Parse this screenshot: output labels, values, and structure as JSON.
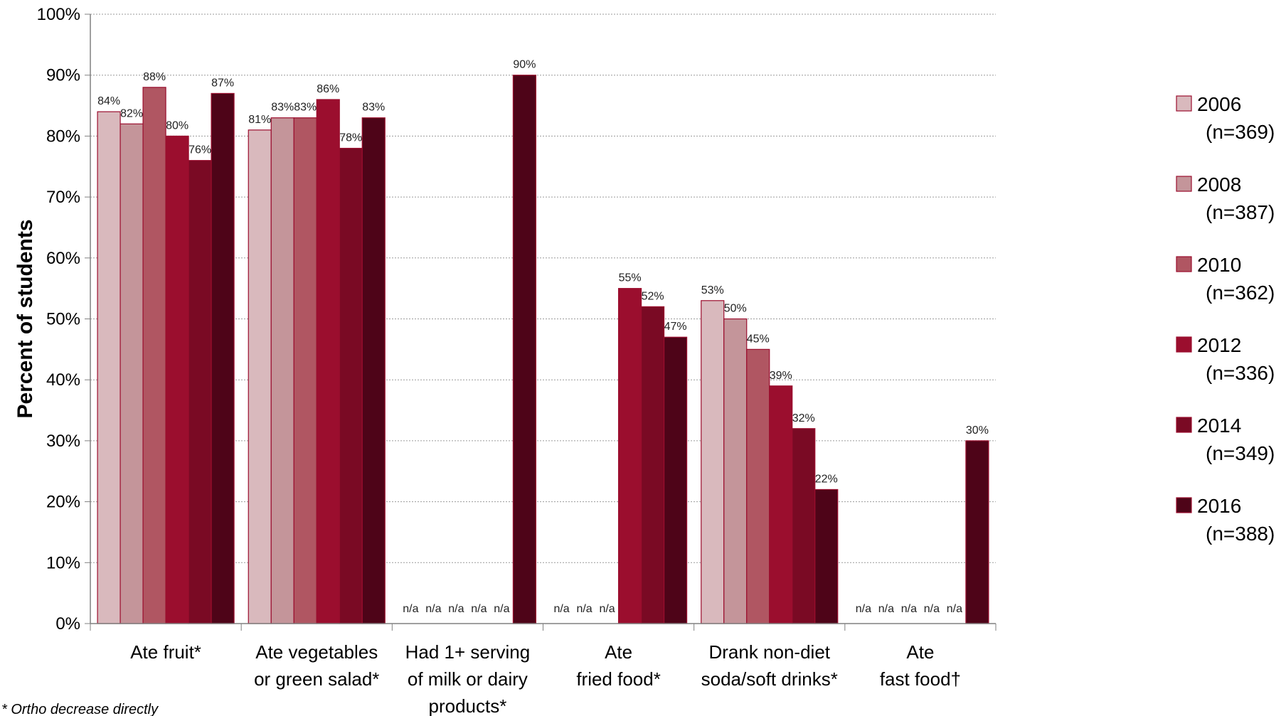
{
  "chart_data": {
    "type": "bar",
    "title": "",
    "xlabel": "",
    "ylabel": "Percent of students",
    "ylim": [
      0,
      100
    ],
    "yticks": [
      "0%",
      "10%",
      "20%",
      "30%",
      "40%",
      "50%",
      "60%",
      "70%",
      "80%",
      "90%",
      "100%"
    ],
    "grid": true,
    "legend": "right",
    "categories": [
      [
        "Ate fruit*"
      ],
      [
        "Ate vegetables",
        "or green salad*"
      ],
      [
        "Had 1+ serving",
        "of milk or dairy",
        "products*"
      ],
      [
        "Ate",
        "fried food*"
      ],
      [
        "Drank non-diet",
        "soda/soft drinks*"
      ],
      [
        "Ate",
        "fast food†"
      ]
    ],
    "series": [
      {
        "name": "2006",
        "n": "(n=369)",
        "color": "#d9b9bd",
        "values": [
          84,
          81,
          null,
          null,
          53,
          null
        ],
        "labels": [
          "84%",
          "81%",
          "n/a",
          "n/a",
          "53%",
          "n/a"
        ]
      },
      {
        "name": "2008",
        "n": "(n=387)",
        "color": "#c4959a",
        "values": [
          82,
          83,
          null,
          null,
          50,
          null
        ],
        "labels": [
          "82%",
          "83%",
          "n/a",
          "n/a",
          "50%",
          "n/a"
        ]
      },
      {
        "name": "2010",
        "n": "(n=362)",
        "color": "#b05662",
        "values": [
          88,
          83,
          null,
          null,
          45,
          null
        ],
        "labels": [
          "88%",
          "83%",
          "n/a",
          "n/a",
          "45%",
          "n/a"
        ]
      },
      {
        "name": "2012",
        "n": "(n=336)",
        "color": "#9b0e2e",
        "values": [
          80,
          86,
          null,
          55,
          39,
          null
        ],
        "labels": [
          "80%",
          "86%",
          "n/a",
          "55%",
          "39%",
          "n/a"
        ]
      },
      {
        "name": "2014",
        "n": "(n=349)",
        "color": "#7a0a24",
        "values": [
          76,
          78,
          null,
          52,
          32,
          null
        ],
        "labels": [
          "76%",
          "78%",
          "n/a",
          "52%",
          "32%",
          "n/a"
        ]
      },
      {
        "name": "2016",
        "n": "(n=388)",
        "color": "#4e0418",
        "values": [
          87,
          83,
          90,
          47,
          22,
          30
        ],
        "labels": [
          "87%",
          "83%",
          "90%",
          "47%",
          "22%",
          "30%"
        ]
      }
    ],
    "footnote": "*  Ortho decrease directly"
  }
}
